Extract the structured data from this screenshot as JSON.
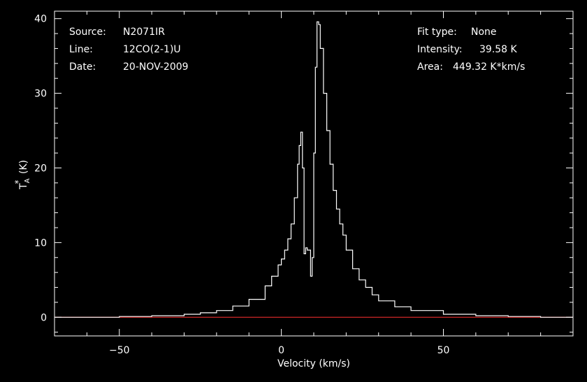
{
  "info": {
    "source_label": "Source:",
    "source_value": "N2071IR",
    "line_label": "Line:",
    "line_value": "12CO(2-1)U",
    "date_label": "Date:",
    "date_value": "20-NOV-2009",
    "fit_label": "Fit type:",
    "fit_value": "None",
    "intensity_label": "Intensity:",
    "intensity_value": "39.58 K",
    "area_label": "Area:",
    "area_value": "449.32 K*km/s"
  },
  "colors": {
    "background": "#000000",
    "spectrum": "#ffffff",
    "baseline": "#ff3030",
    "text": "#ffffff"
  },
  "chart_data": {
    "type": "line",
    "xlabel": "Velocity (km/s)",
    "ylabel": "T_A^* (K)",
    "xlim": [
      -70,
      90
    ],
    "ylim": [
      -2.5,
      41
    ],
    "x_ticks": [
      -50,
      0,
      50
    ],
    "y_ticks": [
      0,
      10,
      20,
      30,
      40
    ],
    "grid": false,
    "baseline_y": 0,
    "series": [
      {
        "x": [
          -70,
          -60,
          -50,
          -40,
          -30,
          -25,
          -20,
          -15,
          -10,
          -5,
          -3,
          -1,
          0,
          1,
          2,
          3,
          4,
          5,
          5.5,
          6,
          6.5,
          7,
          7.5,
          8,
          8.5,
          9,
          9.5,
          10,
          10.5,
          11,
          11.5,
          12,
          13,
          14,
          15,
          16,
          17,
          18,
          19,
          20,
          22,
          24,
          26,
          28,
          30,
          35,
          40,
          50,
          60,
          70,
          80,
          90
        ],
        "y": [
          0,
          0,
          0.1,
          0.2,
          0.4,
          0.6,
          0.9,
          1.5,
          2.4,
          4.2,
          5.5,
          7.0,
          7.8,
          9.0,
          10.5,
          12.5,
          16.0,
          20.5,
          23.0,
          24.8,
          20.0,
          8.5,
          9.3,
          9.0,
          9.0,
          5.5,
          8.0,
          22.0,
          33.5,
          39.58,
          39.2,
          36.0,
          30.0,
          25.0,
          20.5,
          17.0,
          14.5,
          12.5,
          11.0,
          9.0,
          6.5,
          5.0,
          4.0,
          3.0,
          2.2,
          1.4,
          0.9,
          0.4,
          0.2,
          0.1,
          0,
          0
        ]
      }
    ]
  }
}
